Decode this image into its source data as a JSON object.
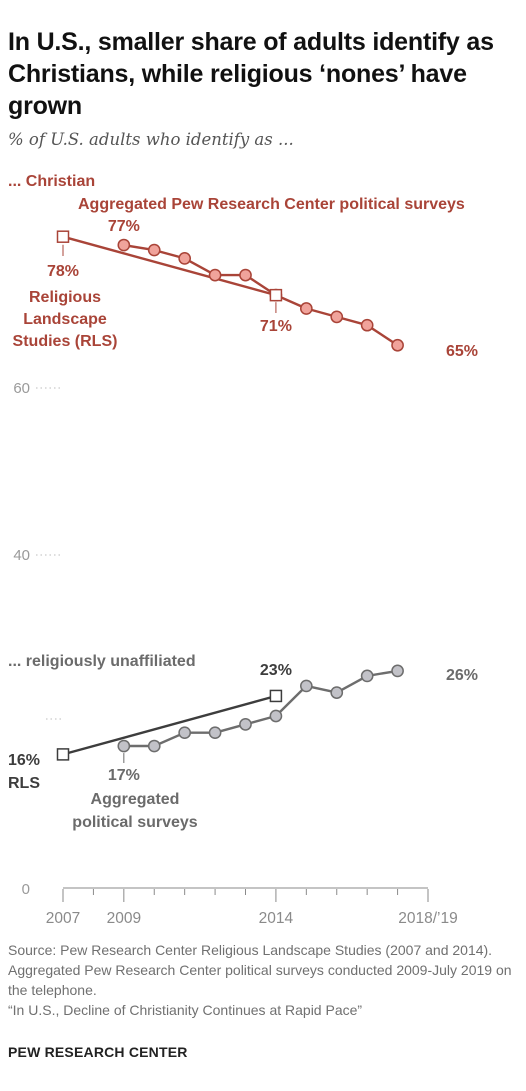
{
  "header": {
    "title": "In U.S., smaller share of adults identify as Christians, while religious ‘nones’ have grown",
    "subtitle": "% of U.S. adults who identify as ..."
  },
  "chart_data": {
    "type": "line",
    "x_ticks": [
      "2007",
      "2009",
      "2014",
      "2018/’19"
    ],
    "y_ticks": [
      0,
      40,
      60
    ],
    "ylim": [
      0,
      80
    ],
    "xlim": [
      2007,
      2019
    ],
    "colors": {
      "christian_line": "#a94438",
      "christian_fill": "#f0a39b",
      "none_line": "#3d3d3d",
      "none_fill": "#c2c2c8",
      "label_gray": "#6b6b6b"
    },
    "groups": [
      {
        "name": "... Christian",
        "series": [
          {
            "name": "Aggregated Pew Research Center political surveys",
            "x": [
              2009,
              2010,
              2011,
              2012,
              2013,
              2014,
              2015,
              2016,
              2017,
              2018
            ],
            "y": [
              77,
              76.4,
              75.4,
              73.4,
              73.4,
              71,
              69.4,
              68.4,
              67.4,
              65
            ],
            "start_label": "77%",
            "end_label": "65%"
          },
          {
            "name": "Religious Landscape Studies (RLS)",
            "x": [
              2007,
              2014
            ],
            "y": [
              78,
              71
            ],
            "start_label": "78%",
            "end_label": "71%"
          }
        ]
      },
      {
        "name": "... religiously unaffiliated",
        "series": [
          {
            "name": "Aggregated political surveys",
            "x": [
              2009,
              2010,
              2011,
              2012,
              2013,
              2014,
              2015,
              2016,
              2017,
              2018
            ],
            "y": [
              17,
              17,
              18.6,
              18.6,
              19.6,
              20.6,
              24.2,
              23.4,
              25.4,
              26
            ],
            "start_label": "17%",
            "end_label": "26%"
          },
          {
            "name": "RLS",
            "x": [
              2007,
              2014
            ],
            "y": [
              16,
              23
            ],
            "start_label": "16%",
            "end_label": "23%"
          }
        ]
      }
    ]
  },
  "footer": {
    "source": "Source: Pew Research Center Religious Landscape Studies (2007 and 2014). Aggregated Pew Research Center political surveys conducted 2009-July 2019 on the telephone.",
    "report": "“In U.S., Decline of Christianity Continues at Rapid Pace”",
    "brand": "PEW RESEARCH CENTER"
  }
}
